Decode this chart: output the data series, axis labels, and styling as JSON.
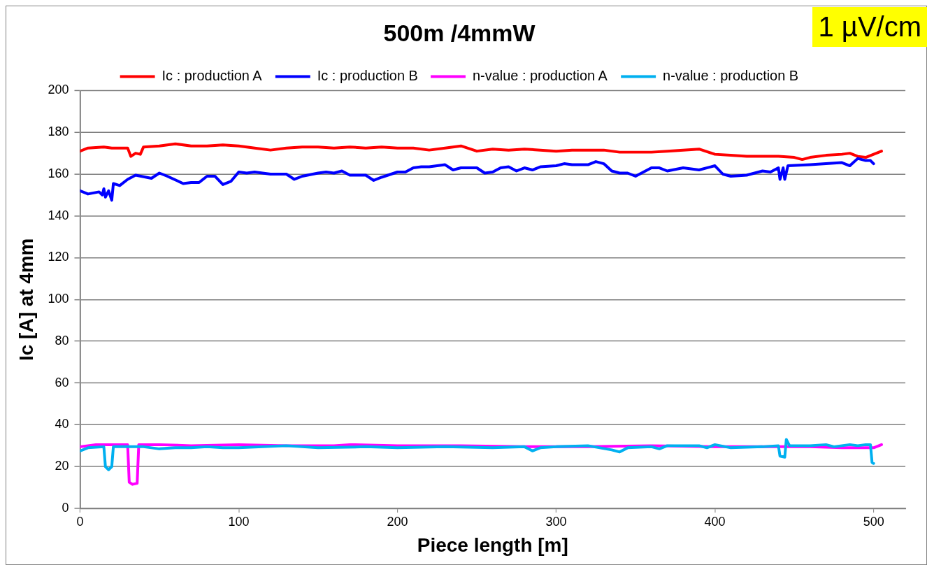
{
  "chart_data": {
    "type": "line",
    "title": "500m /4mmW",
    "annotations": [
      "1 µV/cm"
    ],
    "xlabel": "Piece length [m]",
    "ylabel": "Ic [A] at 4mm",
    "xlim": [
      0,
      520
    ],
    "xticks": [
      0,
      100,
      200,
      300,
      400,
      500
    ],
    "ylim": [
      0,
      200
    ],
    "yticks": [
      0,
      20,
      40,
      60,
      80,
      100,
      120,
      140,
      160,
      180,
      200
    ],
    "grid": "y",
    "legend": "top",
    "marker": "none",
    "line_style": "solid",
    "series": [
      {
        "name": "Ic : production A",
        "color": "#ff0000",
        "x": [
          0,
          5,
          15,
          20,
          30,
          32,
          35,
          38,
          40,
          50,
          60,
          70,
          80,
          90,
          100,
          110,
          120,
          130,
          140,
          150,
          160,
          170,
          180,
          190,
          200,
          210,
          220,
          230,
          240,
          250,
          260,
          270,
          280,
          290,
          300,
          310,
          320,
          330,
          340,
          350,
          360,
          370,
          380,
          390,
          400,
          410,
          420,
          430,
          440,
          450,
          455,
          460,
          470,
          480,
          485,
          490,
          495,
          500,
          505
        ],
        "values": [
          171,
          172.5,
          173,
          172.5,
          172.5,
          168.5,
          170,
          169.5,
          173,
          173.5,
          174.5,
          173.5,
          173.5,
          174,
          173.5,
          172.5,
          171.5,
          172.5,
          173,
          173,
          172.5,
          173,
          172.5,
          173,
          172.5,
          172.5,
          171.5,
          172.5,
          173.5,
          171,
          172,
          171.5,
          172,
          171.5,
          171,
          171.5,
          171.5,
          171.5,
          170.5,
          170.5,
          170.5,
          171,
          171.5,
          172,
          169.5,
          169,
          168.5,
          168.5,
          168.5,
          168,
          167,
          168,
          169,
          169.5,
          170,
          168.5,
          168,
          169.5,
          171
        ]
      },
      {
        "name": "Ic : production B",
        "color": "#0000ff",
        "x": [
          0,
          5,
          12,
          14,
          15,
          16,
          18,
          20,
          21,
          25,
          30,
          35,
          45,
          50,
          55,
          65,
          70,
          75,
          80,
          85,
          90,
          95,
          100,
          105,
          110,
          115,
          120,
          130,
          135,
          140,
          150,
          155,
          160,
          165,
          170,
          180,
          185,
          190,
          200,
          205,
          210,
          215,
          220,
          225,
          230,
          235,
          240,
          250,
          255,
          260,
          265,
          270,
          275,
          280,
          285,
          290,
          300,
          305,
          310,
          320,
          325,
          330,
          335,
          340,
          345,
          350,
          355,
          360,
          365,
          370,
          380,
          390,
          400,
          405,
          410,
          420,
          430,
          435,
          440,
          441,
          443,
          444,
          446,
          460,
          470,
          480,
          485,
          490,
          495,
          498,
          500
        ],
        "values": [
          152,
          150.5,
          151.5,
          150,
          153,
          149,
          152,
          147.5,
          155.5,
          154.5,
          157.5,
          159.5,
          158,
          160.5,
          159,
          155.5,
          156,
          156,
          159,
          159,
          155,
          156.5,
          161,
          160.5,
          161,
          160.5,
          160,
          160,
          157.5,
          159,
          160.5,
          161,
          160.5,
          161.5,
          159.5,
          159.5,
          157,
          158.5,
          161,
          161,
          163,
          163.5,
          163.5,
          164,
          164.5,
          162,
          163,
          163,
          160.5,
          161,
          163,
          163.5,
          161.5,
          163,
          162,
          163.5,
          164,
          165,
          164.5,
          164.5,
          166,
          165,
          161.5,
          160.5,
          160.5,
          159,
          161,
          163,
          163,
          161.5,
          163,
          162,
          164,
          160,
          159,
          159.5,
          161.5,
          161,
          163,
          157.5,
          163,
          157.5,
          164,
          164.5,
          165,
          165.5,
          164,
          167.5,
          166.5,
          166.5,
          165
        ]
      },
      {
        "name": "n-value : production A",
        "color": "#ff00ff",
        "x": [
          0,
          10,
          30,
          31,
          33,
          36,
          37,
          50,
          70,
          100,
          130,
          160,
          170,
          200,
          240,
          280,
          320,
          360,
          400,
          440,
          460,
          480,
          500,
          505
        ],
        "values": [
          29.5,
          30.5,
          30.5,
          12.5,
          11.5,
          12,
          30.5,
          30.5,
          30,
          30.5,
          30,
          30,
          30.5,
          30,
          30,
          29.5,
          29.5,
          30,
          29.5,
          29.5,
          29.5,
          29,
          29,
          30.5
        ]
      },
      {
        "name": "n-value : production B",
        "color": "#00b0f0",
        "x": [
          0,
          5,
          15,
          16,
          18,
          20,
          21,
          40,
          50,
          60,
          70,
          80,
          90,
          100,
          130,
          150,
          180,
          200,
          230,
          260,
          280,
          285,
          290,
          300,
          320,
          335,
          340,
          345,
          360,
          365,
          370,
          390,
          395,
          400,
          410,
          430,
          440,
          441,
          444,
          445,
          447,
          460,
          470,
          475,
          485,
          490,
          495,
          498,
          499,
          500
        ],
        "values": [
          27.5,
          29,
          29.5,
          20,
          18.5,
          20,
          29.5,
          29.5,
          28.5,
          29,
          29,
          29.5,
          29,
          29,
          30,
          29,
          29.5,
          29,
          29.5,
          29,
          29.5,
          27.5,
          29,
          29.5,
          30,
          28,
          27,
          29,
          29.5,
          28.5,
          30,
          30,
          29,
          30.5,
          29,
          29.5,
          30,
          25,
          24.5,
          33,
          30,
          30,
          30.5,
          29.5,
          30.5,
          30,
          30.5,
          30.5,
          22,
          21.5
        ]
      }
    ]
  }
}
